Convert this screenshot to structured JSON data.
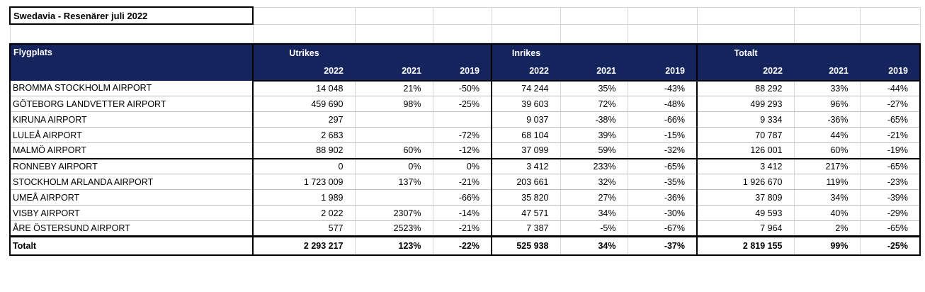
{
  "title": "Swedavia - Resenärer juli 2022",
  "colors": {
    "header_bg": "#16245e",
    "header_text": "#ffffff",
    "grid_line": "#d6d6d6",
    "section_border": "#000000"
  },
  "table": {
    "columns": {
      "flygplats": "Flygplats",
      "groups": [
        "Utrikes",
        "Inrikes",
        "Totalt"
      ],
      "years": [
        "2022",
        "2021",
        "2019"
      ]
    },
    "rows": [
      {
        "flygplats": "BROMMA STOCKHOLM AIRPORT",
        "values": [
          "14 048",
          "21%",
          "-50%",
          "74 244",
          "35%",
          "-43%",
          "88 292",
          "33%",
          "-44%"
        ]
      },
      {
        "flygplats": "GÖTEBORG LANDVETTER AIRPORT",
        "values": [
          "459 690",
          "98%",
          "-25%",
          "39 603",
          "72%",
          "-48%",
          "499 293",
          "96%",
          "-27%"
        ]
      },
      {
        "flygplats": "KIRUNA AIRPORT",
        "values": [
          "297",
          "",
          "",
          "9 037",
          "-38%",
          "-66%",
          "9 334",
          "-36%",
          "-65%"
        ]
      },
      {
        "flygplats": "LULEÅ AIRPORT",
        "values": [
          "2 683",
          "",
          "-72%",
          "68 104",
          "39%",
          "-15%",
          "70 787",
          "44%",
          "-21%"
        ]
      },
      {
        "flygplats": "MALMÖ AIRPORT",
        "values": [
          "88 902",
          "60%",
          "-12%",
          "37 099",
          "59%",
          "-32%",
          "126 001",
          "60%",
          "-19%"
        ]
      },
      {
        "flygplats": "RONNEBY AIRPORT",
        "values": [
          "0",
          "0%",
          "0%",
          "3 412",
          "233%",
          "-65%",
          "3 412",
          "217%",
          "-65%"
        ]
      },
      {
        "flygplats": "STOCKHOLM ARLANDA AIRPORT",
        "values": [
          "1 723 009",
          "137%",
          "-21%",
          "203 661",
          "32%",
          "-35%",
          "1 926 670",
          "119%",
          "-23%"
        ]
      },
      {
        "flygplats": "UMEÅ AIRPORT",
        "values": [
          "1 989",
          "",
          "-66%",
          "35 820",
          "27%",
          "-36%",
          "37 809",
          "34%",
          "-39%"
        ]
      },
      {
        "flygplats": "VISBY AIRPORT",
        "values": [
          "2 022",
          "2307%",
          "-14%",
          "47 571",
          "34%",
          "-30%",
          "49 593",
          "40%",
          "-29%"
        ]
      },
      {
        "flygplats": "ÅRE ÖSTERSUND AIRPORT",
        "values": [
          "577",
          "2523%",
          "-21%",
          "7 387",
          "-5%",
          "-67%",
          "7 964",
          "2%",
          "-65%"
        ]
      }
    ],
    "total_row": {
      "flygplats": "Totalt",
      "values": [
        "2 293 217",
        "123%",
        "-22%",
        "525 938",
        "34%",
        "-37%",
        "2 819 155",
        "99%",
        "-25%"
      ]
    }
  }
}
